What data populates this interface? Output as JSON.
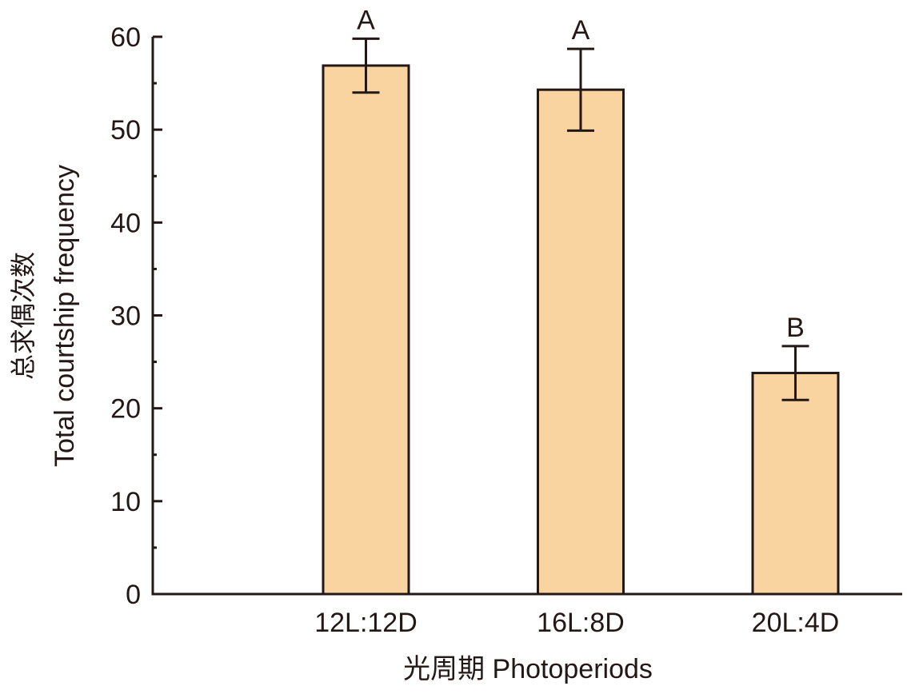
{
  "chart_data": {
    "type": "bar",
    "title": "",
    "categories": [
      "12L:12D",
      "16L:8D",
      "20L:4D"
    ],
    "values": [
      56.9,
      54.3,
      23.8
    ],
    "error_upper": [
      59.8,
      58.7,
      26.7
    ],
    "error_lower": [
      54.0,
      49.9,
      20.9
    ],
    "significance_labels": [
      "A",
      "A",
      "B"
    ],
    "xlabel": "光周期 Photoperiods",
    "ylabel_line1": "总求偶次数",
    "ylabel_line2": "Total courtship frequency",
    "ylim": [
      0,
      60
    ],
    "yticks": [
      0,
      10,
      20,
      30,
      40,
      50,
      60
    ],
    "yminor_step": 5,
    "grid": false,
    "legend": "none",
    "colors": {
      "bar_fill": "#F9D4A0",
      "stroke": "#231815"
    }
  }
}
